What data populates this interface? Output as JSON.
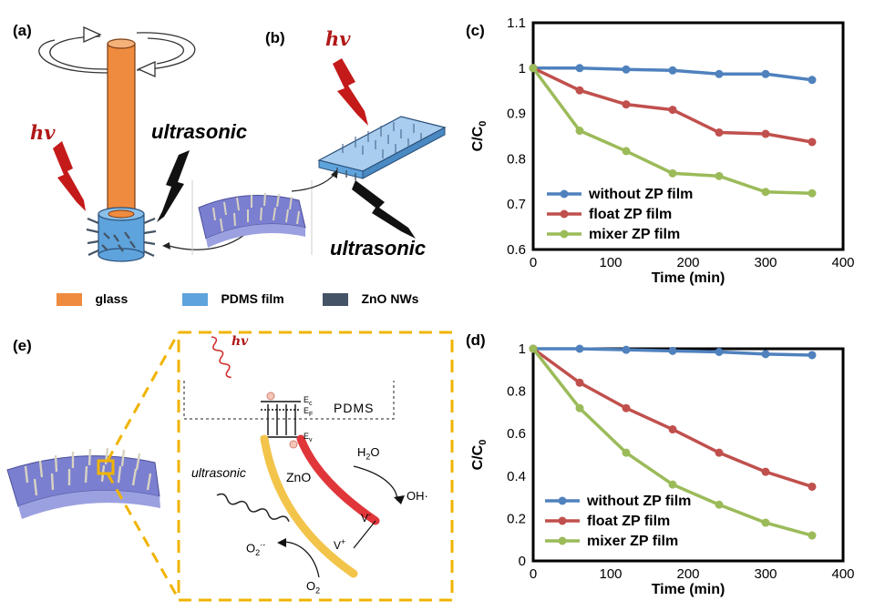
{
  "panel_labels": {
    "a": "(a)",
    "b": "(b)",
    "c": "(c)",
    "d": "(d)",
    "e": "(e)"
  },
  "panel_a": {
    "hv": "hv",
    "ultrasonic": "ultrasonic"
  },
  "panel_b": {
    "hv": "hv",
    "ultrasonic": "ultrasonic"
  },
  "legend_items": [
    {
      "label": "glass",
      "color": "#ef8b3f"
    },
    {
      "label": "PDMS film",
      "color": "#5ea3dc"
    },
    {
      "label": "ZnO NWs",
      "color": "#445365"
    }
  ],
  "panel_e": {
    "hv": "hv",
    "pdms": "PDMS",
    "ultrasonic": "ultrasonic",
    "zno": "ZnO",
    "h2o": "H2O",
    "oh": "OH·",
    "o2_radical": "O2·-",
    "o2": "O2",
    "v_plus": "V+",
    "v_minus": "V-",
    "ec": "Ec",
    "ef": "EF",
    "ev": "Ev"
  },
  "colors": {
    "blue_series": "#4f81bd",
    "red_series": "#c0504d",
    "green_series": "#9bbb59",
    "glass": "#ef8b3f",
    "pdms": "#5ea3dc",
    "zno": "#445365",
    "dashed_box": "#f0b400"
  },
  "chart_data": [
    {
      "type": "line",
      "panel": "(c)",
      "xlabel": "Time (min)",
      "ylabel": "C/C0",
      "xlim": [
        0,
        400
      ],
      "ylim": [
        0.6,
        1.1
      ],
      "xticks": [
        "0",
        "100",
        "200",
        "300",
        "400"
      ],
      "yticks": [
        "0.6",
        "0.7",
        "0.8",
        "0.9",
        "1",
        "1.1"
      ],
      "grid": false,
      "legend_position": "bottom-left",
      "x": [
        0,
        60,
        120,
        180,
        240,
        300,
        360
      ],
      "series": [
        {
          "name": "without ZP film",
          "values": [
            1.0,
            1.0,
            0.997,
            0.995,
            0.987,
            0.987,
            0.974
          ]
        },
        {
          "name": "float ZP film",
          "values": [
            1.0,
            0.951,
            0.92,
            0.908,
            0.858,
            0.855,
            0.837
          ]
        },
        {
          "name": "mixer ZP film",
          "values": [
            1.0,
            0.862,
            0.817,
            0.768,
            0.762,
            0.727,
            0.724
          ]
        }
      ]
    },
    {
      "type": "line",
      "panel": "(d)",
      "xlabel": "Time (min)",
      "ylabel": "C/C0",
      "xlim": [
        0,
        400
      ],
      "ylim": [
        0,
        1
      ],
      "xticks": [
        "0",
        "100",
        "200",
        "300",
        "400"
      ],
      "yticks": [
        "0",
        "0.2",
        "0.4",
        "0.6",
        "0.8",
        "1"
      ],
      "grid": false,
      "legend_position": "bottom-left",
      "x": [
        0,
        60,
        120,
        180,
        240,
        300,
        360
      ],
      "series": [
        {
          "name": "without ZP film",
          "values": [
            1.0,
            1.0,
            0.995,
            0.99,
            0.985,
            0.975,
            0.97
          ]
        },
        {
          "name": "float ZP film",
          "values": [
            1.0,
            0.84,
            0.72,
            0.62,
            0.51,
            0.42,
            0.35
          ]
        },
        {
          "name": "mixer ZP film",
          "values": [
            1.0,
            0.72,
            0.51,
            0.36,
            0.265,
            0.18,
            0.12
          ]
        }
      ]
    }
  ]
}
